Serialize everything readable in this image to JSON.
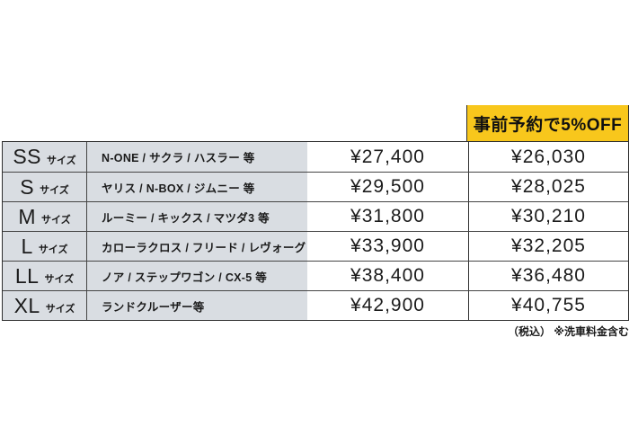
{
  "promo": {
    "label": "事前予約で5%OFF",
    "bg_color": "#F8C71C"
  },
  "table": {
    "rows": [
      {
        "size": "SS",
        "size_suffix": "サイズ",
        "cars": "N-ONE / サクラ / ハスラー 等",
        "price": "¥27,400",
        "discount": "¥26,030"
      },
      {
        "size": "S",
        "size_suffix": "サイズ",
        "cars": "ヤリス / N-BOX / ジムニー 等",
        "price": "¥29,500",
        "discount": "¥28,025"
      },
      {
        "size": "M",
        "size_suffix": "サイズ",
        "cars": "ルーミー / キックス / マツダ3 等",
        "price": "¥31,800",
        "discount": "¥30,210"
      },
      {
        "size": "L",
        "size_suffix": "サイズ",
        "cars": "カローラクロス / フリード / レヴォーグ 等",
        "price": "¥33,900",
        "discount": "¥32,205"
      },
      {
        "size": "LL",
        "size_suffix": "サイズ",
        "cars": "ノア / ステップワゴン / CX-5 等",
        "price": "¥38,400",
        "discount": "¥36,480"
      },
      {
        "size": "XL",
        "size_suffix": "サイズ",
        "cars": "ランドクルーザー等",
        "price": "¥42,900",
        "discount": "¥40,755"
      }
    ]
  },
  "footnote": "（税込） ※洗車料金含む",
  "colors": {
    "row_label_bg": "#D9DDE2",
    "promo_bg": "#F8C71C",
    "border_dark": "#2e2e2e",
    "border_inner": "#454545",
    "text": "#1b1b1b"
  },
  "chart_data": {
    "type": "table",
    "column_headers": [
      "",
      "",
      "",
      "事前予約で5%OFF"
    ],
    "rows": [
      [
        "SS サイズ",
        "N-ONE / サクラ / ハスラー 等",
        "¥27,400",
        "¥26,030"
      ],
      [
        "S サイズ",
        "ヤリス / N-BOX / ジムニー 等",
        "¥29,500",
        "¥28,025"
      ],
      [
        "M サイズ",
        "ルーミー / キックス / マツダ3 等",
        "¥31,800",
        "¥30,210"
      ],
      [
        "L サイズ",
        "カローラクロス / フリード / レヴォーグ 等",
        "¥33,900",
        "¥32,205"
      ],
      [
        "LL サイズ",
        "ノア / ステップワゴン / CX-5 等",
        "¥38,400",
        "¥36,480"
      ],
      [
        "XL サイズ",
        "ランドクルーザー等",
        "¥42,900",
        "¥40,755"
      ]
    ],
    "regular_price_yen": [
      27400,
      29500,
      31800,
      33900,
      38400,
      42900
    ],
    "discount_price_yen": [
      26030,
      28025,
      30210,
      32205,
      36480,
      40755
    ],
    "footnote": "（税込） ※洗車料金含む",
    "title": ""
  }
}
